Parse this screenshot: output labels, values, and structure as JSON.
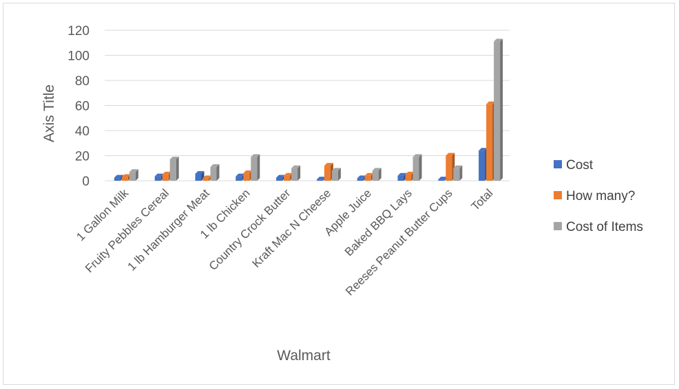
{
  "chart_data": {
    "type": "bar",
    "title": "",
    "xlabel": "Walmart",
    "ylabel": "Axis Title",
    "ylim": [
      0,
      120
    ],
    "yticks": [
      0,
      20,
      40,
      60,
      80,
      100,
      120
    ],
    "grid": true,
    "legend_position": "right",
    "categories": [
      "1 Gallon Milk",
      "Fruity Pebbles Cereal",
      "1 lb Hamburger Meat",
      "1 lb Chicken",
      "Country Crock Butter",
      "Kraft Mac N Cheese",
      "Apple Juice",
      "Baked BBQ Lays",
      "Reeses Peanut Butter Cups",
      "Total"
    ],
    "series": [
      {
        "name": "Cost",
        "color": "#4472c4",
        "values": [
          2.5,
          3.5,
          5.5,
          3.5,
          2.5,
          1,
          2,
          4,
          1,
          24
        ]
      },
      {
        "name": "How many?",
        "color": "#ed7d31",
        "values": [
          3,
          5,
          2,
          6,
          4,
          12,
          4,
          5,
          20,
          61
        ]
      },
      {
        "name": "Cost of Items",
        "color": "#a5a5a5",
        "values": [
          7,
          17,
          11,
          19,
          10,
          8,
          8,
          19,
          10,
          111
        ]
      }
    ]
  }
}
